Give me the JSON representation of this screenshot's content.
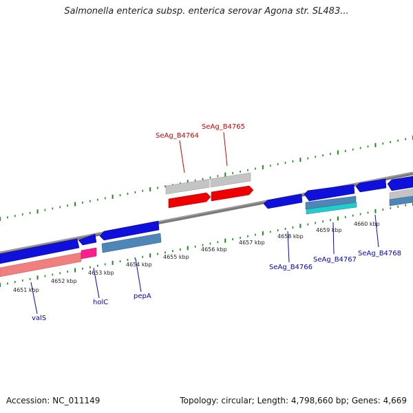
{
  "title": "Salmonella enterica subsp. enterica serovar Agona str. SL483...",
  "footer": {
    "accession": "Accession: NC_011149",
    "summary": "Topology: circular; Length: 4,798,660 bp; Genes: 4,669"
  },
  "colors": {
    "tick_green": "#1a8a1a",
    "backbone": "#808080",
    "forward_cds": "#ee0000",
    "forward_gene": "#c8c8c8",
    "reverse_cds": "#1010dd",
    "reverse_gene_steel": "#4f86b8",
    "reverse_gene_cyan": "#22cccc",
    "trna_pink": "#ff3399",
    "rrna_salmon": "#f08080",
    "label_blue": "#0000cc",
    "label_red": "#cc0000"
  },
  "scale_labels": [
    "4651 kbp",
    "4652 kbp",
    "4653 kbp",
    "4654 kbp",
    "4655 kbp",
    "4656 kbp",
    "4657 kbp",
    "4658 kbp",
    "4659 kbp",
    "4660 kbp"
  ],
  "gene_labels": {
    "forward": [
      "SeAg_B4764",
      "SeAg_B4765"
    ],
    "reverse": [
      "valS",
      "holC",
      "pepA",
      "SeAg_B4766",
      "SeAg_B4767",
      "SeAg_B4768"
    ]
  }
}
